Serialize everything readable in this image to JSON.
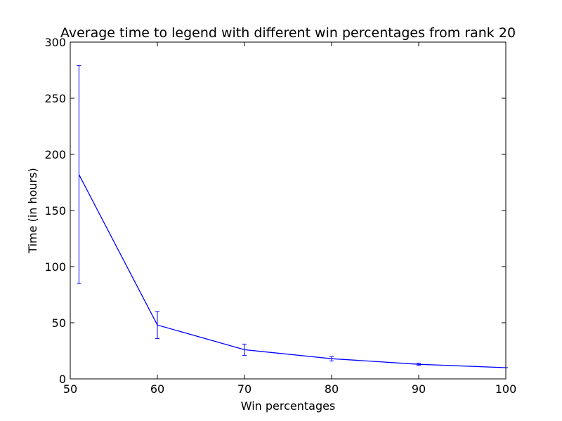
{
  "chart_data": {
    "type": "line",
    "title": "Average time to legend with different win percentages from rank 20",
    "xlabel": "Win percentages",
    "ylabel": "Time (in hours)",
    "xlim": [
      50,
      100
    ],
    "ylim": [
      0,
      300
    ],
    "xticks": [
      50,
      60,
      70,
      80,
      90,
      100
    ],
    "yticks": [
      0,
      50,
      100,
      150,
      200,
      250,
      300
    ],
    "grid": false,
    "legend": "none",
    "series": [
      {
        "color": "#0000ff",
        "x": [
          51,
          60,
          70,
          80,
          90,
          100
        ],
        "y": [
          182,
          48,
          26,
          18,
          13,
          10
        ],
        "error_low": [
          85,
          36,
          21,
          16,
          12,
          10
        ],
        "error_high": [
          279,
          60,
          31,
          20,
          14,
          10
        ]
      }
    ]
  }
}
